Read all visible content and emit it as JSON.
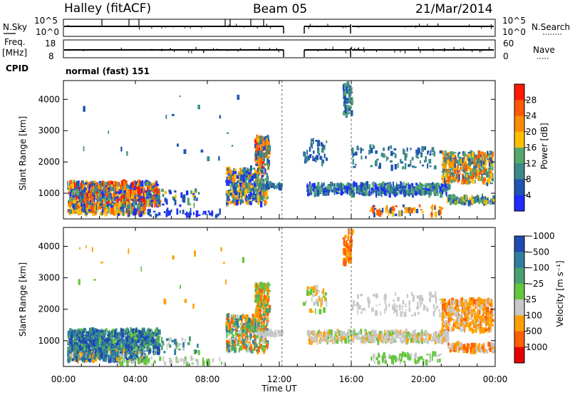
{
  "header": {
    "station": "Halley (fitACF)",
    "beam": "Beam 05",
    "date": "21/Mar/2014"
  },
  "status_panels": {
    "left_top_label": "N.Sky",
    "left_top_ticks": [
      "10^5",
      "10^0"
    ],
    "right_top_label": "N.Search",
    "right_top_ticks": [
      "10^5",
      "10^0"
    ],
    "left_mid_label_1": "Freq.",
    "left_mid_label_2": "[MHz]",
    "left_mid_ticks": [
      "18",
      "8"
    ],
    "right_mid_label": "Nave",
    "right_mid_ticks": [
      "60",
      "0"
    ],
    "cpid_label": "CPID",
    "cpid_value": "normal (fast) 151"
  },
  "chart_data": [
    {
      "type": "heatmap",
      "panel": "power",
      "ylabel": "Slant Range [km]",
      "yticks": [
        "1000",
        "2000",
        "3000",
        "4000"
      ],
      "ylim": [
        180,
        4600
      ],
      "colorbar_label": "Power [dB]",
      "colorbar_ticks": [
        "4",
        "8",
        "12",
        "16",
        "20",
        "24",
        "28"
      ],
      "colors": [
        "#1f2bff",
        "#1f55b0",
        "#3b8a88",
        "#58a86e",
        "#ffbf00",
        "#ff8c00",
        "#ff5a00",
        "#ff1a00"
      ]
    },
    {
      "type": "heatmap",
      "panel": "velocity",
      "ylabel": "Slant Range [km]",
      "yticks": [
        "1000",
        "2000",
        "3000",
        "4000"
      ],
      "ylim": [
        180,
        4600
      ],
      "colorbar_label": "Velocity [m s⁻¹]",
      "colorbar_ticks": [
        "1000",
        "500",
        "100",
        "25",
        "−25",
        "−100",
        "−500",
        "−1000"
      ],
      "colors": [
        "#1f4bb0",
        "#2f7fa0",
        "#4aa070",
        "#66c640",
        "#c8c8c8",
        "#ffa000",
        "#ff6000",
        "#e80000"
      ]
    }
  ],
  "xaxis": {
    "label": "Time UT",
    "ticks": [
      "00:00",
      "04:00",
      "08:00",
      "12:00",
      "16:00",
      "20:00",
      "00:00"
    ]
  }
}
